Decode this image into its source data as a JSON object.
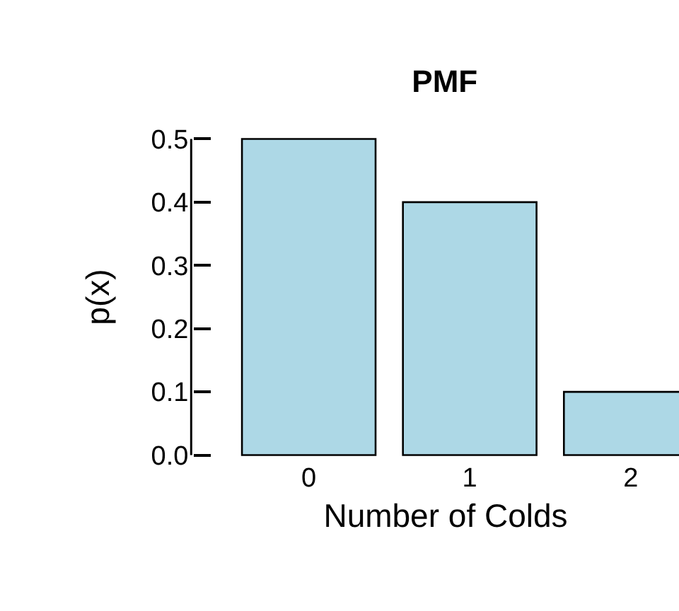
{
  "chart_data": {
    "type": "bar",
    "title": "PMF",
    "xlabel": "Number of Colds",
    "ylabel": "p(x)",
    "categories": [
      "0",
      "1",
      "2"
    ],
    "values": [
      0.5,
      0.4,
      0.1
    ],
    "color": "#add8e6",
    "ylim": [
      0,
      0.5
    ],
    "yticks": [
      {
        "value": 0,
        "label": "0.0"
      },
      0.1,
      0.2,
      0.3,
      0.4,
      0.5
    ]
  }
}
